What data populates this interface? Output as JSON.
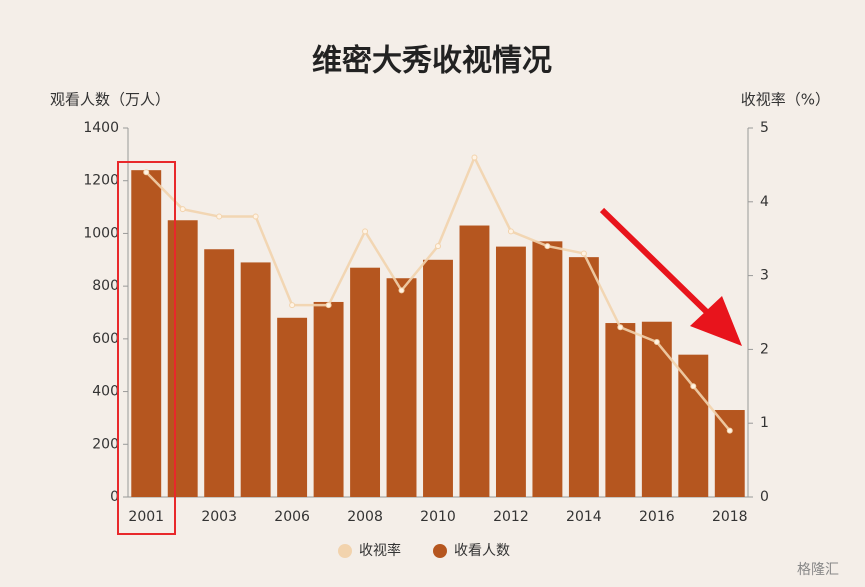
{
  "chart_data": {
    "type": "bar-line",
    "title": "维密大秀收视情况",
    "y_label": "观看人数（万人）",
    "y2_label": "收视率（%）",
    "categories": [
      "2001",
      null,
      "2003",
      null,
      "2006",
      null,
      "2008",
      null,
      "2010",
      null,
      "2012",
      null,
      "2014",
      null,
      "2016",
      null,
      "2018"
    ],
    "series": [
      {
        "name": "收视率",
        "type": "line",
        "axis": "y2",
        "color": "#f2d3ad",
        "values": [
          4.4,
          3.9,
          3.8,
          3.8,
          2.6,
          2.6,
          3.6,
          2.8,
          3.4,
          4.6,
          3.6,
          3.4,
          3.3,
          2.3,
          2.1,
          1.5,
          0.9
        ]
      },
      {
        "name": "收看人数",
        "type": "bar",
        "color": "#b5561f",
        "values": [
          1240,
          1050,
          940,
          890,
          680,
          740,
          870,
          830,
          900,
          1030,
          950,
          970,
          910,
          660,
          665,
          540,
          330
        ]
      }
    ],
    "ylim": [
      0,
      1400
    ],
    "yticks": [
      0,
      200,
      400,
      600,
      800,
      1000,
      1200,
      1400
    ],
    "y2lim": [
      0,
      5
    ],
    "y2ticks": [
      0,
      1,
      2,
      3,
      4,
      5
    ],
    "watermark": "格隆汇"
  }
}
